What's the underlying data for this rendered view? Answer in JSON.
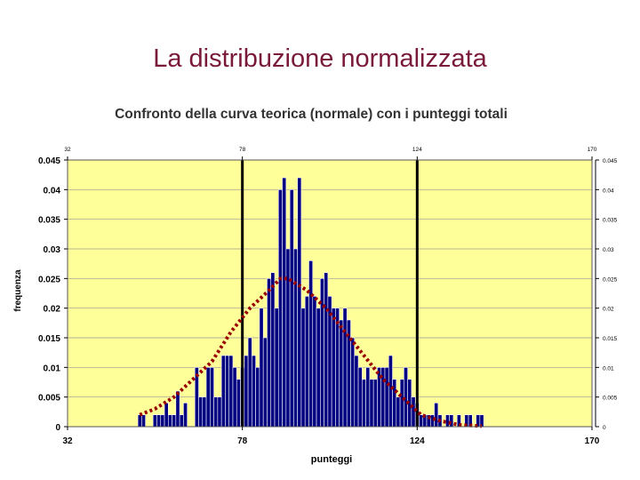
{
  "slide": {
    "title": "La distribuzione normalizzata"
  },
  "chart_data": {
    "type": "bar",
    "title": "Confronto della curva teorica (normale) con i punteggi totali",
    "xlabel": "punteggi",
    "ylabel": "frequenza",
    "xlim": [
      32,
      170
    ],
    "ylim": [
      0,
      0.045
    ],
    "xticks": [
      "32",
      "78",
      "124",
      "170"
    ],
    "yticks_left": [
      "0",
      "0.005",
      "0.01",
      "0.015",
      "0.02",
      "0.025",
      "0.03",
      "0.035",
      "0.04",
      "0.045"
    ],
    "yticks_right": [
      "0",
      "0.005",
      "0.01",
      "0.015",
      "0.02",
      "0.025",
      "0.03",
      "0.035",
      "0.04",
      "0.045"
    ],
    "vertical_markers": [
      78,
      124
    ],
    "grid": true,
    "colors": {
      "plot_bg": "#ffff99",
      "bars": "#000080",
      "curve": "#990000",
      "grid": "#999999",
      "markers": "#000000"
    },
    "histogram": {
      "x": [
        51,
        52,
        53,
        54,
        55,
        56,
        57,
        58,
        59,
        60,
        61,
        62,
        63,
        64,
        65,
        66,
        67,
        68,
        69,
        70,
        71,
        72,
        73,
        74,
        75,
        76,
        77,
        78,
        79,
        80,
        81,
        82,
        83,
        84,
        85,
        86,
        87,
        88,
        89,
        90,
        91,
        92,
        93,
        94,
        95,
        96,
        97,
        98,
        99,
        100,
        101,
        102,
        103,
        104,
        105,
        106,
        107,
        108,
        109,
        110,
        111,
        112,
        113,
        114,
        115,
        116,
        117,
        118,
        119,
        120,
        121,
        122,
        123,
        124,
        125,
        126,
        127,
        128,
        129,
        130,
        131,
        132,
        133,
        134,
        135,
        136,
        137,
        138,
        139,
        140,
        141
      ],
      "values": [
        0.002,
        0.002,
        0,
        0,
        0.002,
        0.002,
        0.002,
        0.004,
        0.002,
        0.002,
        0.006,
        0.002,
        0.004,
        0,
        0,
        0.01,
        0.005,
        0.005,
        0.01,
        0.01,
        0.005,
        0.005,
        0.012,
        0.012,
        0.012,
        0.01,
        0.008,
        0.01,
        0.012,
        0.015,
        0.012,
        0.01,
        0.02,
        0.015,
        0.025,
        0.026,
        0.02,
        0.04,
        0.042,
        0.03,
        0.04,
        0.03,
        0.042,
        0.02,
        0.022,
        0.028,
        0.022,
        0.02,
        0.025,
        0.026,
        0.022,
        0.02,
        0.02,
        0.018,
        0.02,
        0.018,
        0.015,
        0.012,
        0.01,
        0.008,
        0.01,
        0.008,
        0.008,
        0.01,
        0.01,
        0.01,
        0.012,
        0.008,
        0.005,
        0.008,
        0.01,
        0.008,
        0.005,
        0.004,
        0.002,
        0.002,
        0.002,
        0.002,
        0.004,
        0.002,
        0,
        0.002,
        0.002,
        0,
        0.002,
        0,
        0.002,
        0.002,
        0,
        0.002,
        0.002
      ]
    },
    "curve": {
      "x": [
        51,
        55,
        60,
        65,
        70,
        75,
        80,
        85,
        88,
        90,
        95,
        100,
        105,
        110,
        115,
        120,
        125,
        130,
        135,
        141
      ],
      "y": [
        0.002,
        0.003,
        0.005,
        0.008,
        0.011,
        0.016,
        0.02,
        0.023,
        0.025,
        0.025,
        0.023,
        0.02,
        0.016,
        0.012,
        0.008,
        0.005,
        0.002,
        0.001,
        0.0003,
        0.0001
      ]
    }
  }
}
